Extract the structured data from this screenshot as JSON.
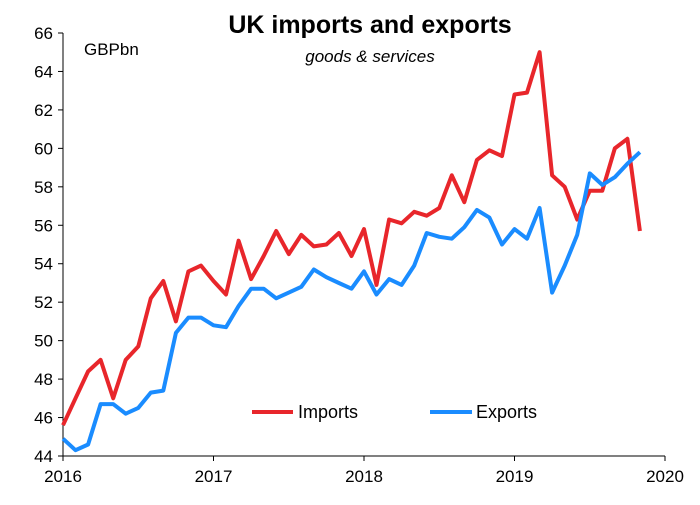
{
  "chart_data": {
    "type": "line",
    "title": "UK imports and exports",
    "subtitle": "goods & services",
    "unit_label": "GBPbn",
    "xlabel": "",
    "ylabel": "",
    "xlim": [
      2016,
      2020
    ],
    "ylim": [
      44,
      66
    ],
    "x_ticks": [
      2016,
      2017,
      2018,
      2019,
      2020
    ],
    "y_ticks": [
      44,
      46,
      48,
      50,
      52,
      54,
      56,
      58,
      60,
      62,
      64,
      66
    ],
    "grid": false,
    "legend_position": "bottom-center",
    "x": [
      "2016-01",
      "2016-02",
      "2016-03",
      "2016-04",
      "2016-05",
      "2016-06",
      "2016-07",
      "2016-08",
      "2016-09",
      "2016-10",
      "2016-11",
      "2016-12",
      "2017-01",
      "2017-02",
      "2017-03",
      "2017-04",
      "2017-05",
      "2017-06",
      "2017-07",
      "2017-08",
      "2017-09",
      "2017-10",
      "2017-11",
      "2017-12",
      "2018-01",
      "2018-02",
      "2018-03",
      "2018-04",
      "2018-05",
      "2018-06",
      "2018-07",
      "2018-08",
      "2018-09",
      "2018-10",
      "2018-11",
      "2018-12",
      "2019-01",
      "2019-02",
      "2019-03",
      "2019-04",
      "2019-05",
      "2019-06",
      "2019-07",
      "2019-08",
      "2019-09",
      "2019-10",
      "2019-11"
    ],
    "series": [
      {
        "name": "Imports",
        "color": "#e8262b",
        "values": [
          45.6,
          47.0,
          48.4,
          49.0,
          47.0,
          49.0,
          49.7,
          52.2,
          53.1,
          51.0,
          53.6,
          53.9,
          53.1,
          52.4,
          55.2,
          53.2,
          54.4,
          55.7,
          54.5,
          55.5,
          54.9,
          55.0,
          55.6,
          54.4,
          55.8,
          52.9,
          56.3,
          56.1,
          56.7,
          56.5,
          56.9,
          58.6,
          57.2,
          59.4,
          59.9,
          59.6,
          62.8,
          62.9,
          65.0,
          58.6,
          58.0,
          56.3,
          57.8,
          57.8,
          60.0,
          60.5,
          55.7
        ]
      },
      {
        "name": "Exports",
        "color": "#1a8cff",
        "values": [
          44.9,
          44.3,
          44.6,
          46.7,
          46.7,
          46.2,
          46.5,
          47.3,
          47.4,
          50.4,
          51.2,
          51.2,
          50.8,
          50.7,
          51.8,
          52.7,
          52.7,
          52.2,
          52.5,
          52.8,
          53.7,
          53.3,
          53.0,
          52.7,
          53.6,
          52.4,
          53.2,
          52.9,
          53.9,
          55.6,
          55.4,
          55.3,
          55.9,
          56.8,
          56.4,
          55.0,
          55.8,
          55.3,
          56.9,
          52.5,
          53.9,
          55.5,
          58.7,
          58.1,
          58.5,
          59.2,
          59.8
        ]
      }
    ]
  }
}
